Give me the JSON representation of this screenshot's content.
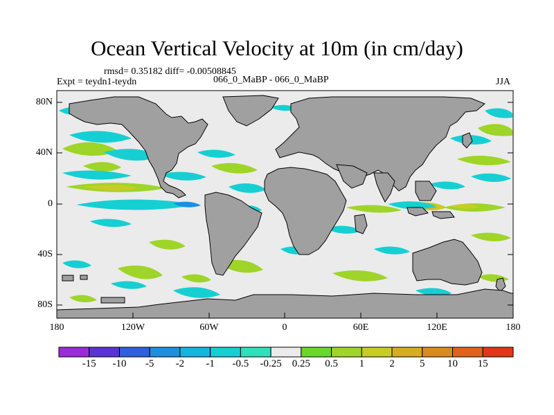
{
  "title": "Ocean Vertical Velocity at 10m (in cm/day)",
  "stats": "rmsd= 0.35182 diff= -0.00508845",
  "left_label": "Expt = teydn1-teydn",
  "center_label": "066_0_MaBP - 066_0_MaBP",
  "right_label": "JJA",
  "lat_ticks": [
    "80N",
    "40N",
    "0",
    "40S",
    "80S"
  ],
  "lon_ticks": [
    "180",
    "120W",
    "60W",
    "0",
    "60E",
    "120E",
    "180"
  ],
  "colorbar_labels": [
    "-15",
    "-10",
    "-5",
    "-2",
    "-1",
    "-0.5",
    "-0.25",
    "0.25",
    "0.5",
    "1",
    "2",
    "5",
    "10",
    "15"
  ],
  "colorbar_colors": [
    "#9a2bd8",
    "#5a33d6",
    "#2f5fdc",
    "#1d8fe0",
    "#14b5e0",
    "#16cfd2",
    "#2ee0bc",
    "#ebebeb",
    "#6ad82a",
    "#9fd429",
    "#c9cc25",
    "#d6ac20",
    "#dd8a1c",
    "#e06319",
    "#e03814"
  ],
  "land_color": "#a0a0a0",
  "ocean_color": "#ebebeb"
}
